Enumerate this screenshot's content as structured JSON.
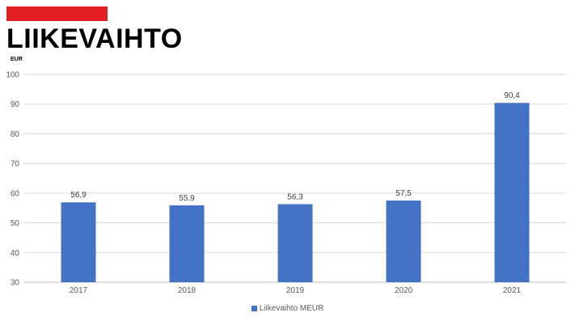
{
  "header": {
    "title": "LIIKEVAIHTO",
    "accent_color": "#e31e24"
  },
  "chart_data": {
    "type": "bar",
    "title": "LIIKEVAIHTO",
    "ylabel": "EUR",
    "xlabel": "",
    "categories": [
      "2017",
      "2018",
      "2019",
      "2020",
      "2021"
    ],
    "series": [
      {
        "name": "Liikevaihto MEUR",
        "values": [
          56.9,
          55.9,
          56.3,
          57.5,
          90.4
        ],
        "data_labels": [
          "56,9",
          "55,9",
          "56,3",
          "57,5",
          "90,4"
        ],
        "color": "#4472c4"
      }
    ],
    "ylim": [
      30,
      100
    ],
    "yticks": [
      30,
      40,
      50,
      60,
      70,
      80,
      90,
      100
    ],
    "grid": true,
    "gridline_color": "#d9d9d9",
    "legend": "bottom"
  }
}
